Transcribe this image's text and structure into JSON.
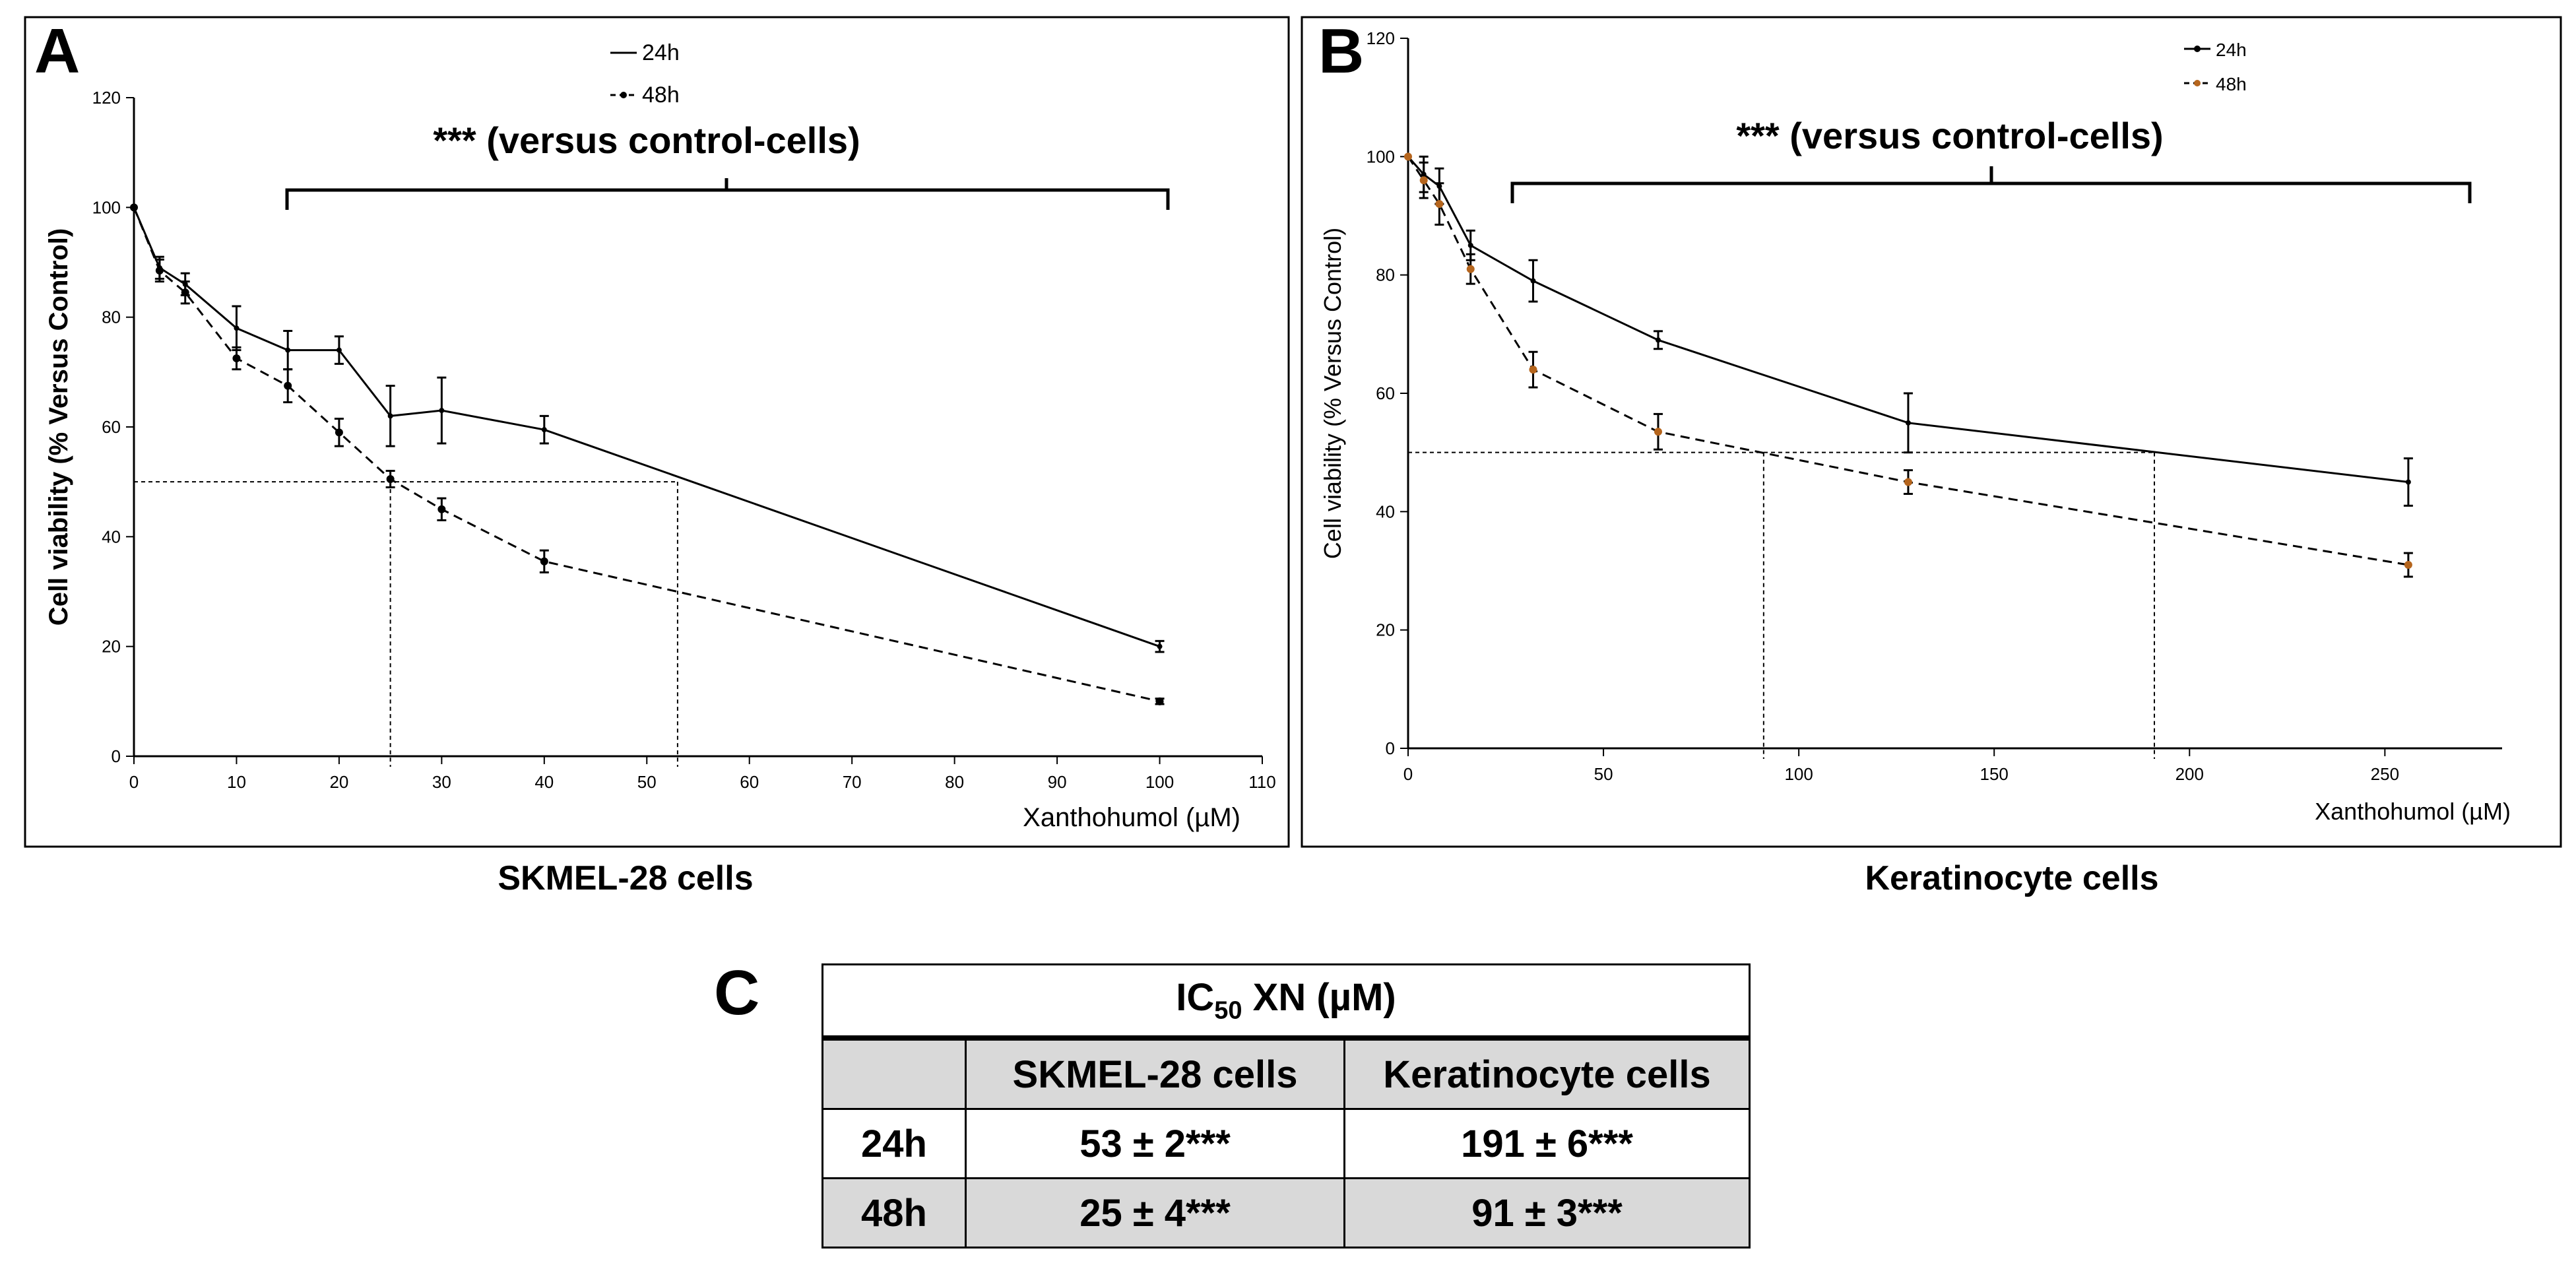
{
  "panel_a": {
    "letter": "A",
    "caption": "SKMEL-28 cells",
    "annotation": "*** (versus control-cells)",
    "ic50_guides": [
      53,
      25
    ]
  },
  "panel_b": {
    "letter": "B",
    "caption": "Keratinocyte cells",
    "annotation": "*** (versus control-cells)",
    "ic50_guides": [
      191,
      91
    ]
  },
  "panel_c": {
    "letter": "C",
    "title_prefix": "IC",
    "title_sub": "50",
    "title_suffix": " XN (µM)",
    "columns": [
      "",
      "SKMEL-28 cells",
      "Keratinocyte cells"
    ],
    "rows": [
      {
        "label": "24h",
        "skmel": "53 ± 2***",
        "kera": "191 ± 6***"
      },
      {
        "label": "48h",
        "skmel": "25 ± 4***",
        "kera": "91 ± 3***"
      }
    ]
  },
  "chart_data": [
    {
      "type": "line",
      "xlabel": "Xanthohumol (µM)",
      "ylabel": "Cell viability (% Versus Control)",
      "xlim": [
        0,
        110
      ],
      "ylim": [
        0,
        120
      ],
      "xticks": [
        0,
        10,
        20,
        30,
        40,
        50,
        60,
        70,
        80,
        90,
        100,
        110
      ],
      "yticks": [
        0,
        20,
        40,
        60,
        80,
        100,
        120
      ],
      "legend": "top-center",
      "series": [
        {
          "name": "24h",
          "style": "solid",
          "x": [
            0,
            2.5,
            5,
            10,
            15,
            20,
            25,
            30,
            40,
            100
          ],
          "y": [
            100,
            89,
            86,
            78,
            74,
            74,
            62,
            63,
            59.5,
            20
          ],
          "err": [
            0,
            2,
            2,
            4,
            3.5,
            2.5,
            5.5,
            6,
            2.5,
            1
          ]
        },
        {
          "name": "48h",
          "style": "dashed",
          "x": [
            0,
            2.5,
            5,
            10,
            15,
            20,
            25,
            30,
            40,
            100
          ],
          "y": [
            100,
            88.5,
            84.5,
            72.5,
            67.5,
            59,
            50.5,
            45,
            35.5,
            10
          ],
          "err": [
            0,
            2,
            2,
            2,
            3,
            2.5,
            1.5,
            2,
            2,
            0.5
          ]
        }
      ]
    },
    {
      "type": "line",
      "xlabel": "Xanthohumol (µM)",
      "ylabel": "Cell viability (% Versus Control)",
      "xlim": [
        0,
        280
      ],
      "ylim": [
        0,
        120
      ],
      "xticks": [
        0,
        50,
        100,
        150,
        200,
        250
      ],
      "yticks": [
        0,
        20,
        40,
        60,
        80,
        100,
        120
      ],
      "legend": "top-right",
      "series": [
        {
          "name": "24h",
          "style": "solid",
          "x": [
            0,
            4,
            8,
            16,
            32,
            64,
            128,
            256
          ],
          "y": [
            100,
            97,
            95,
            85,
            79,
            69,
            55,
            45
          ],
          "err": [
            0,
            3,
            3,
            2.5,
            3.5,
            1.5,
            5,
            4
          ]
        },
        {
          "name": "48h",
          "style": "dashed",
          "x": [
            0,
            4,
            8,
            16,
            32,
            64,
            128,
            256
          ],
          "y": [
            100,
            96,
            92,
            81,
            64,
            53.5,
            45,
            31
          ],
          "err": [
            0,
            3,
            3.5,
            2.5,
            3,
            3,
            2,
            2
          ]
        }
      ]
    }
  ]
}
